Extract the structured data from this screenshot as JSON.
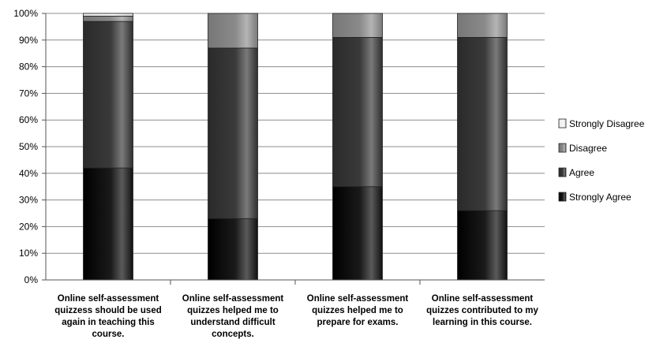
{
  "chart_data": {
    "type": "bar",
    "stacked": true,
    "percent": true,
    "categories": [
      [
        "Online self-assessment",
        "quizzess should be used",
        "again in teaching this",
        "course."
      ],
      [
        "Online self-assessment",
        "quizzes helped me to",
        "understand difficult",
        "concepts."
      ],
      [
        "Online self-assessment",
        "quizzes helped me to",
        "prepare for exams."
      ],
      [
        "Online self-assessment",
        "quizzes contributed to my",
        "learning in this course."
      ]
    ],
    "series": [
      {
        "name": "Strongly Agree",
        "values": [
          42,
          23,
          35,
          26
        ]
      },
      {
        "name": "Agree",
        "values": [
          55,
          64,
          56,
          65
        ]
      },
      {
        "name": "Disagree",
        "values": [
          2,
          13,
          9,
          9
        ]
      },
      {
        "name": "Strongly Disagree",
        "values": [
          1,
          0,
          0,
          0
        ]
      }
    ],
    "ylim": [
      0,
      100
    ],
    "yticks": [
      "0%",
      "10%",
      "20%",
      "30%",
      "40%",
      "50%",
      "60%",
      "70%",
      "80%",
      "90%",
      "100%"
    ],
    "grid": true,
    "legend_placement": "right",
    "colors": {
      "Strongly Agree": "#111111",
      "Agree": "#3a3a3a",
      "Disagree": "#8a8a8a",
      "Strongly Disagree": "#f4f4f4"
    },
    "title": "",
    "xlabel": "",
    "ylabel": ""
  }
}
